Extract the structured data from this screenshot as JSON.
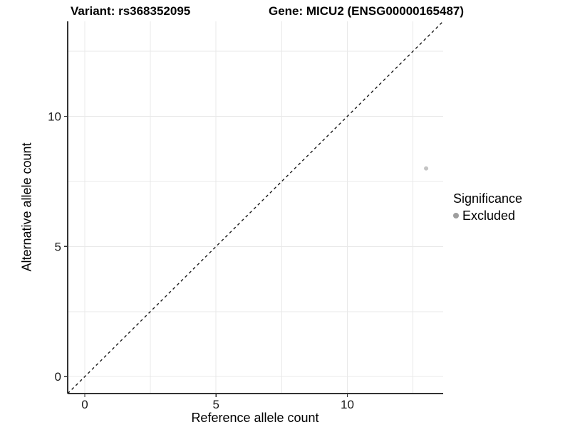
{
  "chart_data": {
    "type": "scatter",
    "title_left": "Variant: rs368352095",
    "title_right": "Gene: MICU2 (ENSG00000165487)",
    "xlabel": "Reference allele count",
    "ylabel": "Alternative allele count",
    "xlim": [
      -0.65,
      13.65
    ],
    "ylim": [
      -0.65,
      13.65
    ],
    "x_ticks": [
      0,
      5,
      10
    ],
    "y_ticks": [
      0,
      5,
      10
    ],
    "gridline_positions": [
      0,
      2.5,
      5,
      7.5,
      10,
      12.5
    ],
    "grid_on": true,
    "points": [
      {
        "x": 13,
        "y": 8,
        "significance": "Excluded"
      }
    ],
    "identity_line": {
      "slope": 1,
      "intercept": 0,
      "style": "dashed"
    },
    "legend": {
      "title": "Significance",
      "position": "right",
      "items": [
        {
          "label": "Excluded",
          "marker": "dot-icon"
        }
      ]
    },
    "colors": {
      "point": "#c4c4c4",
      "legend_point": "#9e9e9e",
      "grid": "#e9e9e9",
      "axis": "#333333",
      "identity_line": "#1a1a1a",
      "background": "#ffffff"
    }
  }
}
